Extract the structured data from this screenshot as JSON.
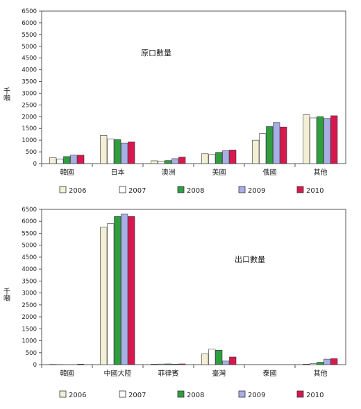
{
  "chart_data": [
    {
      "type": "bar",
      "title": "原口數量",
      "ylabel": "千噸",
      "xlabel": "",
      "ylim": [
        0,
        6500
      ],
      "yticks": [
        0,
        500,
        1000,
        1500,
        2000,
        2500,
        3000,
        3500,
        4000,
        4500,
        5000,
        5500,
        6000,
        6500
      ],
      "categories": [
        "韓國",
        "日本",
        "澳洲",
        "美國",
        "俄國",
        "其他"
      ],
      "series": [
        {
          "name": "2006",
          "color": "#f2efd4",
          "values": [
            260,
            1200,
            120,
            420,
            1000,
            2080
          ]
        },
        {
          "name": "2007",
          "color": "#ffffff",
          "values": [
            200,
            1050,
            110,
            390,
            1280,
            1950
          ]
        },
        {
          "name": "2008",
          "color": "#2e9e3f",
          "values": [
            300,
            1020,
            130,
            480,
            1580,
            2000
          ]
        },
        {
          "name": "2009",
          "color": "#a9aee6",
          "values": [
            360,
            880,
            210,
            550,
            1750,
            1930
          ]
        },
        {
          "name": "2010",
          "color": "#d9174f",
          "values": [
            360,
            920,
            280,
            580,
            1560,
            2040
          ]
        }
      ],
      "legend_position": "bottom",
      "grid": false
    },
    {
      "type": "bar",
      "title": "出口數量",
      "ylabel": "千噸",
      "xlabel": "",
      "ylim": [
        0,
        6500
      ],
      "yticks": [
        0,
        500,
        1000,
        1500,
        2000,
        2500,
        3000,
        3500,
        4000,
        4500,
        5000,
        5500,
        6000,
        6500
      ],
      "categories": [
        "韓國",
        "中國大陸",
        "菲律賓",
        "臺灣",
        "泰國",
        "其他"
      ],
      "series": [
        {
          "name": "2006",
          "color": "#f2efd4",
          "values": [
            10,
            5750,
            20,
            450,
            0,
            20
          ]
        },
        {
          "name": "2007",
          "color": "#ffffff",
          "values": [
            5,
            5900,
            25,
            650,
            0,
            40
          ]
        },
        {
          "name": "2008",
          "color": "#2e9e3f",
          "values": [
            0,
            6200,
            30,
            600,
            0,
            100
          ]
        },
        {
          "name": "2009",
          "color": "#a9aee6",
          "values": [
            0,
            6300,
            20,
            150,
            0,
            230
          ]
        },
        {
          "name": "2010",
          "color": "#d9174f",
          "values": [
            20,
            6200,
            30,
            320,
            0,
            250
          ]
        }
      ],
      "legend_position": "bottom",
      "grid": false
    }
  ]
}
